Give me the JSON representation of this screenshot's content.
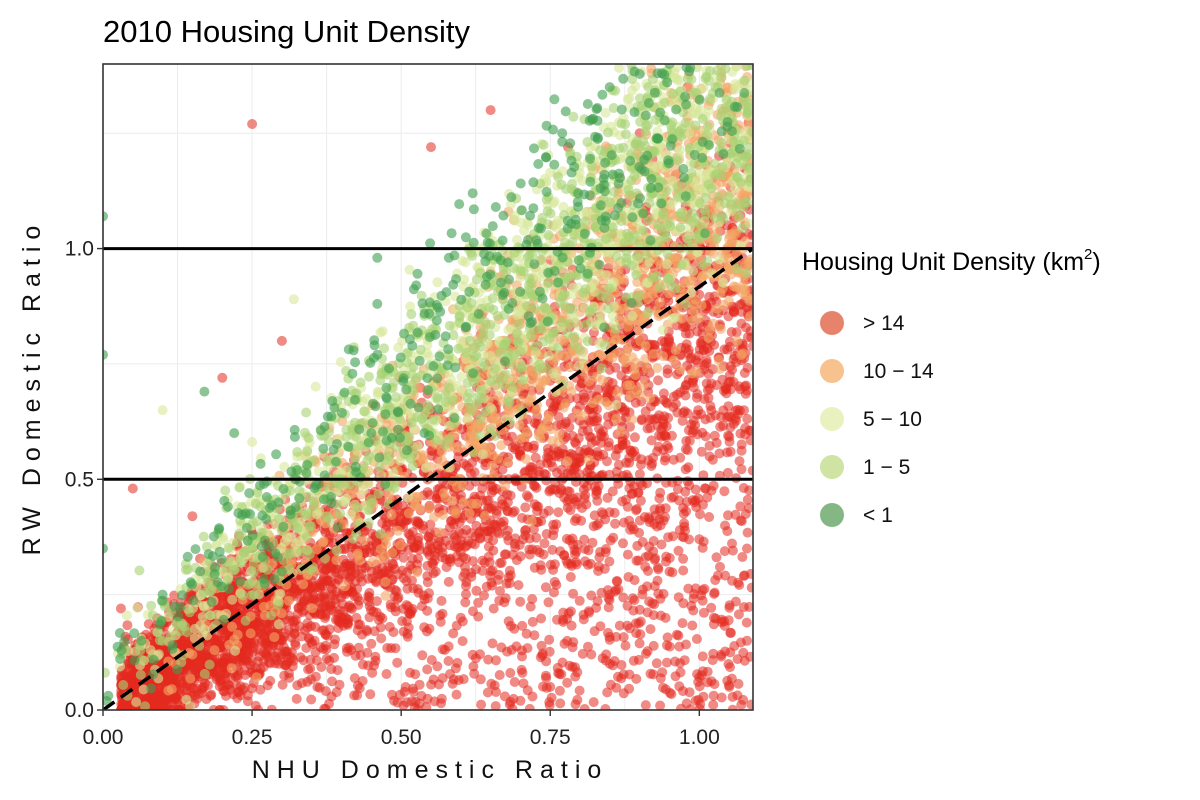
{
  "chart_data": {
    "type": "scatter",
    "title": "2010 Housing Unit Density",
    "xlabel": "NHU Domestic Ratio",
    "ylabel": "RW Domestic Ratio",
    "xlim": [
      0,
      1.09
    ],
    "ylim": [
      0,
      1.4
    ],
    "x_ticks": [
      0,
      0.25,
      0.5,
      0.75,
      1.0
    ],
    "x_tick_labels": [
      "0.00",
      "0.25",
      "0.50",
      "0.75",
      "1.00"
    ],
    "y_ticks": [
      0,
      0.5,
      1.0
    ],
    "y_tick_labels": [
      "0.0",
      "0.5",
      "1.0"
    ],
    "grid": true,
    "reference_lines": [
      {
        "kind": "horizontal",
        "y": 0.5,
        "style": "solid"
      },
      {
        "kind": "horizontal",
        "y": 1.0,
        "style": "solid"
      },
      {
        "kind": "diagonal",
        "x": [
          0,
          1.09
        ],
        "y": [
          0,
          1.0
        ],
        "style": "dashed"
      }
    ],
    "legend": {
      "title": "Housing Unit Density",
      "title_unit_base": "km",
      "title_unit_exp": "2",
      "position": "right",
      "entries": [
        {
          "label": "> 14",
          "color": "#e8836b"
        },
        {
          "label": "10 − 14",
          "color": "#f8c28e"
        },
        {
          "label": "5 − 10",
          "color": "#e9f1bf"
        },
        {
          "label": "1 − 5",
          "color": "#cfe3a2"
        },
        {
          "label": "< 1",
          "color": "#84b784"
        }
      ]
    },
    "series": [
      {
        "label": "> 14",
        "color": "#e32a1f",
        "count": 4200,
        "points": [
          [
            0.25,
            1.27
          ],
          [
            0.07,
            0.05
          ],
          [
            0.1,
            0.08
          ],
          [
            0.2,
            0.15
          ],
          [
            0.3,
            0.12
          ],
          [
            0.4,
            0.2
          ],
          [
            0.5,
            0.4
          ],
          [
            0.6,
            0.5
          ],
          [
            0.7,
            0.55
          ],
          [
            0.8,
            0.7
          ],
          [
            0.9,
            0.8
          ],
          [
            1.0,
            0.9
          ],
          [
            0.95,
            1.1
          ],
          [
            0.98,
            1.35
          ],
          [
            0.75,
            0.05
          ],
          [
            0.85,
            0.1
          ],
          [
            0.95,
            0.3
          ],
          [
            1.08,
            0.35
          ],
          [
            1.08,
            0.15
          ],
          [
            0.85,
            0.25
          ],
          [
            0.6,
            0.2
          ],
          [
            0.7,
            0.02
          ],
          [
            0.55,
            0.65
          ],
          [
            0.45,
            0.45
          ],
          [
            0.35,
            0.28
          ],
          [
            0.2,
            0.72
          ],
          [
            0.3,
            0.8
          ],
          [
            0.65,
            1.3
          ],
          [
            0.55,
            1.22
          ],
          [
            0.78,
            1.22
          ],
          [
            0.82,
            1.08
          ],
          [
            0.9,
            1.25
          ],
          [
            0.05,
            0.48
          ],
          [
            0.15,
            0.42
          ],
          [
            0.03,
            0.22
          ]
        ]
      },
      {
        "label": "10 − 14",
        "color": "#f4a766",
        "count": 1100,
        "points": [
          [
            0.68,
            1.08
          ],
          [
            0.9,
            1.2
          ],
          [
            0.95,
            0.98
          ],
          [
            1.05,
            1.02
          ],
          [
            0.65,
            0.95
          ],
          [
            0.8,
            0.9
          ],
          [
            0.5,
            0.55
          ],
          [
            0.3,
            0.35
          ],
          [
            0.15,
            0.12
          ],
          [
            0.92,
            1.38
          ],
          [
            1.0,
            0.85
          ]
        ]
      },
      {
        "label": "5 − 10",
        "color": "#d7e89a",
        "count": 900,
        "points": [
          [
            0.1,
            0.65
          ],
          [
            0.32,
            0.89
          ],
          [
            0.7,
            0.75
          ],
          [
            0.95,
            1.2
          ],
          [
            1.0,
            1.1
          ],
          [
            0.45,
            0.6
          ],
          [
            0.2,
            0.3
          ],
          [
            0.6,
            0.8
          ],
          [
            0.85,
            1.0
          ]
        ]
      },
      {
        "label": "1 − 5",
        "color": "#a6d273",
        "count": 900,
        "points": [
          [
            0.58,
            0.77
          ],
          [
            0.62,
            0.85
          ],
          [
            0.7,
            1.0
          ],
          [
            0.85,
            1.1
          ],
          [
            0.4,
            0.5
          ],
          [
            0.25,
            0.35
          ],
          [
            0.1,
            0.15
          ],
          [
            0.5,
            0.65
          ],
          [
            0.75,
            0.95
          ]
        ]
      },
      {
        "label": "< 1",
        "color": "#3f9e4f",
        "count": 420,
        "points": [
          [
            0.0,
            1.07
          ],
          [
            0.0,
            0.77
          ],
          [
            0.0,
            0.35
          ],
          [
            0.46,
            0.98
          ],
          [
            0.46,
            0.88
          ],
          [
            0.46,
            0.77
          ],
          [
            0.62,
            1.12
          ],
          [
            0.77,
            1.25
          ],
          [
            0.82,
            1.28
          ],
          [
            0.93,
            1.38
          ],
          [
            0.45,
            0.6
          ],
          [
            0.27,
            0.49
          ],
          [
            0.22,
            0.6
          ],
          [
            0.17,
            0.69
          ],
          [
            0.58,
            0.98
          ],
          [
            0.3,
            0.3
          ],
          [
            0.1,
            0.25
          ],
          [
            0.95,
            1.4
          ]
        ]
      }
    ]
  }
}
